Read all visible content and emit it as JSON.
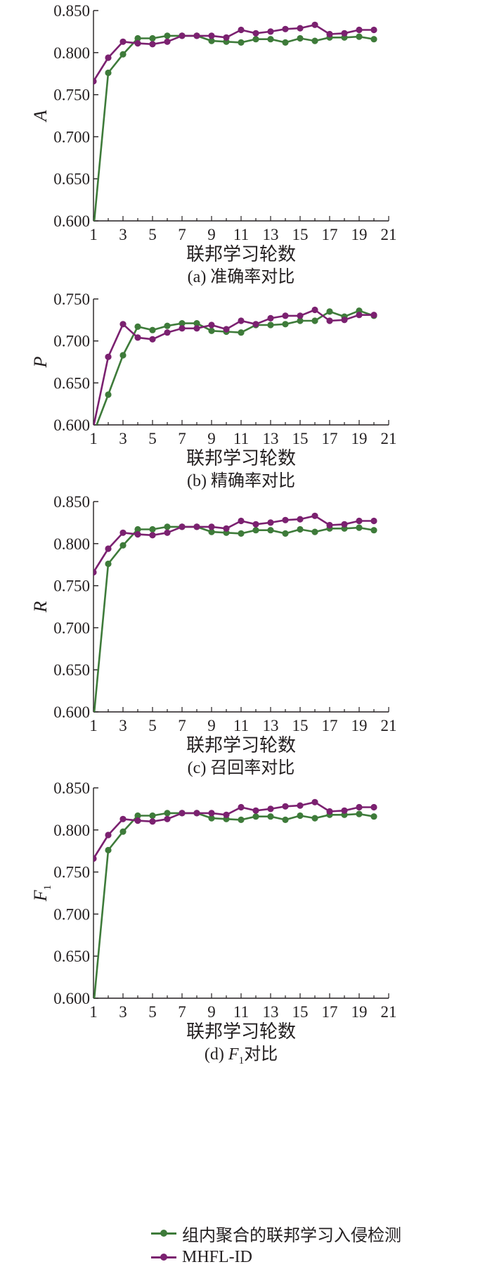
{
  "chart_data": [
    {
      "type": "line",
      "ylabel": "A",
      "xlabel": "联邦学习轮数",
      "caption": "(a) 准确率对比",
      "x": [
        1,
        2,
        3,
        4,
        5,
        6,
        7,
        8,
        9,
        10,
        11,
        12,
        13,
        14,
        15,
        16,
        17,
        18,
        19,
        20
      ],
      "xticks": [
        "1",
        "3",
        "5",
        "7",
        "9",
        "11",
        "13",
        "15",
        "17",
        "19",
        "21"
      ],
      "xlim": [
        1,
        21
      ],
      "ylim": [
        0.6,
        0.85
      ],
      "yticks": [
        "0.600",
        "0.650",
        "0.700",
        "0.750",
        "0.800",
        "0.850"
      ],
      "series": [
        {
          "name": "组内聚合的联邦学习入侵检测",
          "values": [
            0.59,
            0.776,
            0.798,
            0.817,
            0.817,
            0.82,
            0.82,
            0.82,
            0.814,
            0.813,
            0.812,
            0.816,
            0.816,
            0.812,
            0.817,
            0.814,
            0.818,
            0.818,
            0.819,
            0.816
          ]
        },
        {
          "name": "MHFL-ID",
          "values": [
            0.766,
            0.794,
            0.813,
            0.811,
            0.81,
            0.813,
            0.82,
            0.82,
            0.82,
            0.818,
            0.827,
            0.823,
            0.825,
            0.828,
            0.829,
            0.833,
            0.822,
            0.823,
            0.827,
            0.827
          ]
        }
      ]
    },
    {
      "type": "line",
      "ylabel": "P",
      "xlabel": "联邦学习轮数",
      "caption": "(b) 精确率对比",
      "x": [
        1,
        2,
        3,
        4,
        5,
        6,
        7,
        8,
        9,
        10,
        11,
        12,
        13,
        14,
        15,
        16,
        17,
        18,
        19,
        20
      ],
      "xticks": [
        "1",
        "3",
        "5",
        "7",
        "9",
        "11",
        "13",
        "15",
        "17",
        "19",
        "21"
      ],
      "xlim": [
        1,
        21
      ],
      "ylim": [
        0.6,
        0.75
      ],
      "yticks": [
        "0.600",
        "0.650",
        "0.700",
        "0.750"
      ],
      "series": [
        {
          "name": "组内聚合的联邦学习入侵检测",
          "values": [
            0.59,
            0.636,
            0.683,
            0.717,
            0.713,
            0.718,
            0.721,
            0.721,
            0.712,
            0.711,
            0.71,
            0.719,
            0.719,
            0.72,
            0.724,
            0.724,
            0.735,
            0.729,
            0.736,
            0.73
          ]
        },
        {
          "name": "MHFL-ID",
          "values": [
            0.598,
            0.681,
            0.72,
            0.704,
            0.702,
            0.71,
            0.715,
            0.715,
            0.719,
            0.714,
            0.724,
            0.72,
            0.727,
            0.73,
            0.73,
            0.737,
            0.724,
            0.725,
            0.731,
            0.731
          ]
        }
      ]
    },
    {
      "type": "line",
      "ylabel": "R",
      "xlabel": "联邦学习轮数",
      "caption": "(c) 召回率对比",
      "x": [
        1,
        2,
        3,
        4,
        5,
        6,
        7,
        8,
        9,
        10,
        11,
        12,
        13,
        14,
        15,
        16,
        17,
        18,
        19,
        20
      ],
      "xticks": [
        "1",
        "3",
        "5",
        "7",
        "9",
        "11",
        "13",
        "15",
        "17",
        "19",
        "21"
      ],
      "xlim": [
        1,
        21
      ],
      "ylim": [
        0.6,
        0.85
      ],
      "yticks": [
        "0.600",
        "0.650",
        "0.700",
        "0.750",
        "0.800",
        "0.850"
      ],
      "series": [
        {
          "name": "组内聚合的联邦学习入侵检测",
          "values": [
            0.59,
            0.776,
            0.798,
            0.817,
            0.817,
            0.82,
            0.82,
            0.82,
            0.814,
            0.813,
            0.812,
            0.816,
            0.816,
            0.812,
            0.817,
            0.814,
            0.818,
            0.818,
            0.819,
            0.816
          ]
        },
        {
          "name": "MHFL-ID",
          "values": [
            0.766,
            0.794,
            0.813,
            0.811,
            0.81,
            0.813,
            0.82,
            0.82,
            0.82,
            0.818,
            0.827,
            0.823,
            0.825,
            0.828,
            0.829,
            0.833,
            0.822,
            0.823,
            0.827,
            0.827
          ]
        }
      ]
    },
    {
      "type": "line",
      "ylabel": "F",
      "ylabel_sub": "1",
      "xlabel": "联邦学习轮数",
      "caption": "(d) F1对比",
      "caption_parts": {
        "prefix": "(d) ",
        "var": "F",
        "sub": "1",
        "suffix": "对比"
      },
      "x": [
        1,
        2,
        3,
        4,
        5,
        6,
        7,
        8,
        9,
        10,
        11,
        12,
        13,
        14,
        15,
        16,
        17,
        18,
        19,
        20
      ],
      "xticks": [
        "1",
        "3",
        "5",
        "7",
        "9",
        "11",
        "13",
        "15",
        "17",
        "19",
        "21"
      ],
      "xlim": [
        1,
        21
      ],
      "ylim": [
        0.6,
        0.85
      ],
      "yticks": [
        "0.600",
        "0.650",
        "0.700",
        "0.750",
        "0.800",
        "0.850"
      ],
      "series": [
        {
          "name": "组内聚合的联邦学习入侵检测",
          "values": [
            0.59,
            0.776,
            0.798,
            0.817,
            0.817,
            0.82,
            0.82,
            0.82,
            0.814,
            0.813,
            0.812,
            0.816,
            0.816,
            0.812,
            0.817,
            0.814,
            0.818,
            0.818,
            0.819,
            0.816
          ]
        },
        {
          "name": "MHFL-ID",
          "values": [
            0.766,
            0.794,
            0.813,
            0.811,
            0.81,
            0.813,
            0.82,
            0.82,
            0.82,
            0.818,
            0.827,
            0.823,
            0.825,
            0.828,
            0.829,
            0.833,
            0.822,
            0.823,
            0.827,
            0.827
          ]
        }
      ]
    }
  ],
  "legend": {
    "items": [
      {
        "label": "组内聚合的联邦学习入侵检测",
        "color": "#3e7b3a"
      },
      {
        "label": "MHFL-ID",
        "color": "#7b2170"
      }
    ]
  },
  "colors": {
    "series_1": "#3e7b3a",
    "series_2": "#7b2170",
    "axis": "#231f20"
  }
}
